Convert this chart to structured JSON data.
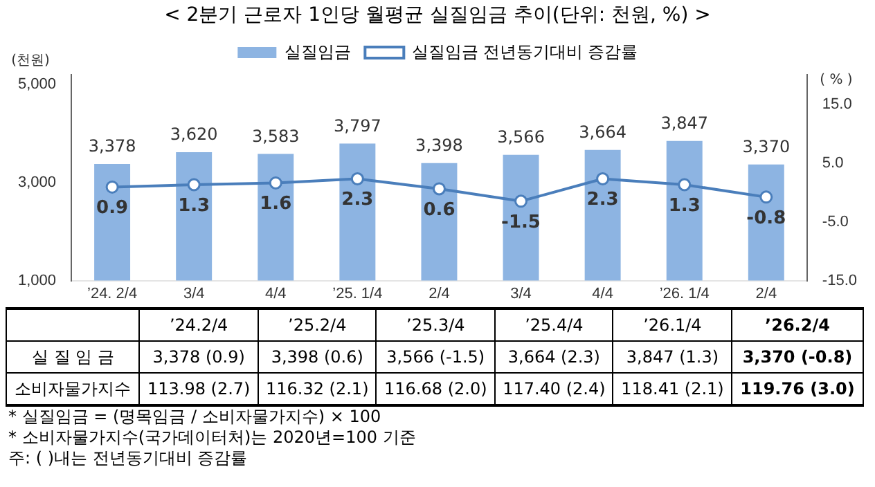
{
  "chart_data": {
    "type": "bar",
    "title": "< 2분기 근로자 1인당 월평균 실질임금 추이(단위: 천원, %) >",
    "ylabel": "(천원)",
    "y2label": "( % )",
    "categories": [
      "’24. 2/4",
      "3/4",
      "4/4",
      "’25. 1/4",
      "2/4",
      "3/4",
      "4/4",
      "’26. 1/4",
      "2/4"
    ],
    "series": [
      {
        "name": "실질임금",
        "color": "#8db4e2",
        "values": [
          3378,
          3620,
          3583,
          3797,
          3398,
          3566,
          3664,
          3847,
          3370
        ],
        "value_labels": [
          "3,378",
          "3,620",
          "3,583",
          "3,797",
          "3,398",
          "3,566",
          "3,664",
          "3,847",
          "3,370"
        ]
      },
      {
        "name": "실질임금 전년동기대비 증감률",
        "type": "line",
        "axis": "y2",
        "color": "#4a7ebb",
        "values": [
          0.9,
          1.3,
          1.6,
          2.3,
          0.6,
          -1.5,
          2.3,
          1.3,
          -0.8
        ]
      }
    ],
    "ylim": [
      1000,
      5200
    ],
    "yticks": [
      {
        "value": 1000,
        "label": "1,000"
      },
      {
        "value": 3000,
        "label": "3,000"
      },
      {
        "value": 5000,
        "label": "5,000"
      }
    ],
    "y2lim": [
      -15,
      20
    ],
    "y2ticks": [
      {
        "value": -15,
        "label": "-15.0"
      },
      {
        "value": -5,
        "label": "-5.0"
      },
      {
        "value": 5,
        "label": "5.0"
      },
      {
        "value": 15,
        "label": "15.0"
      }
    ],
    "data_labels": true,
    "legend": "top",
    "grid": false,
    "marker": "circle",
    "line_style": "solid",
    "annotations": [
      "’24.2/4",
      "’25.2/4",
      "’25.3/4",
      "’25.4/4",
      "’26.1/4",
      "’26.2/4",
      "실 질 임 금",
      "3,378 (0.9)",
      "3,398 (0.6)",
      "3,566 (-1.5)",
      "3,664 (2.3)",
      "3,847 (1.3)",
      "3,370 (-0.8)",
      "소비자물가지수",
      "113.98 (2.7)",
      "116.32 (2.1)",
      "116.68 (2.0)",
      "117.40 (2.4)",
      "118.41 (2.1)",
      "119.76 (3.0)",
      "* 실질임금 = (명목임금 / 소비자물가지수) × 100",
      "* 소비자물가지수(국가데이터처)는 2020년=100 기준",
      "주: ( )내는 전년동기대비 증감률"
    ]
  }
}
